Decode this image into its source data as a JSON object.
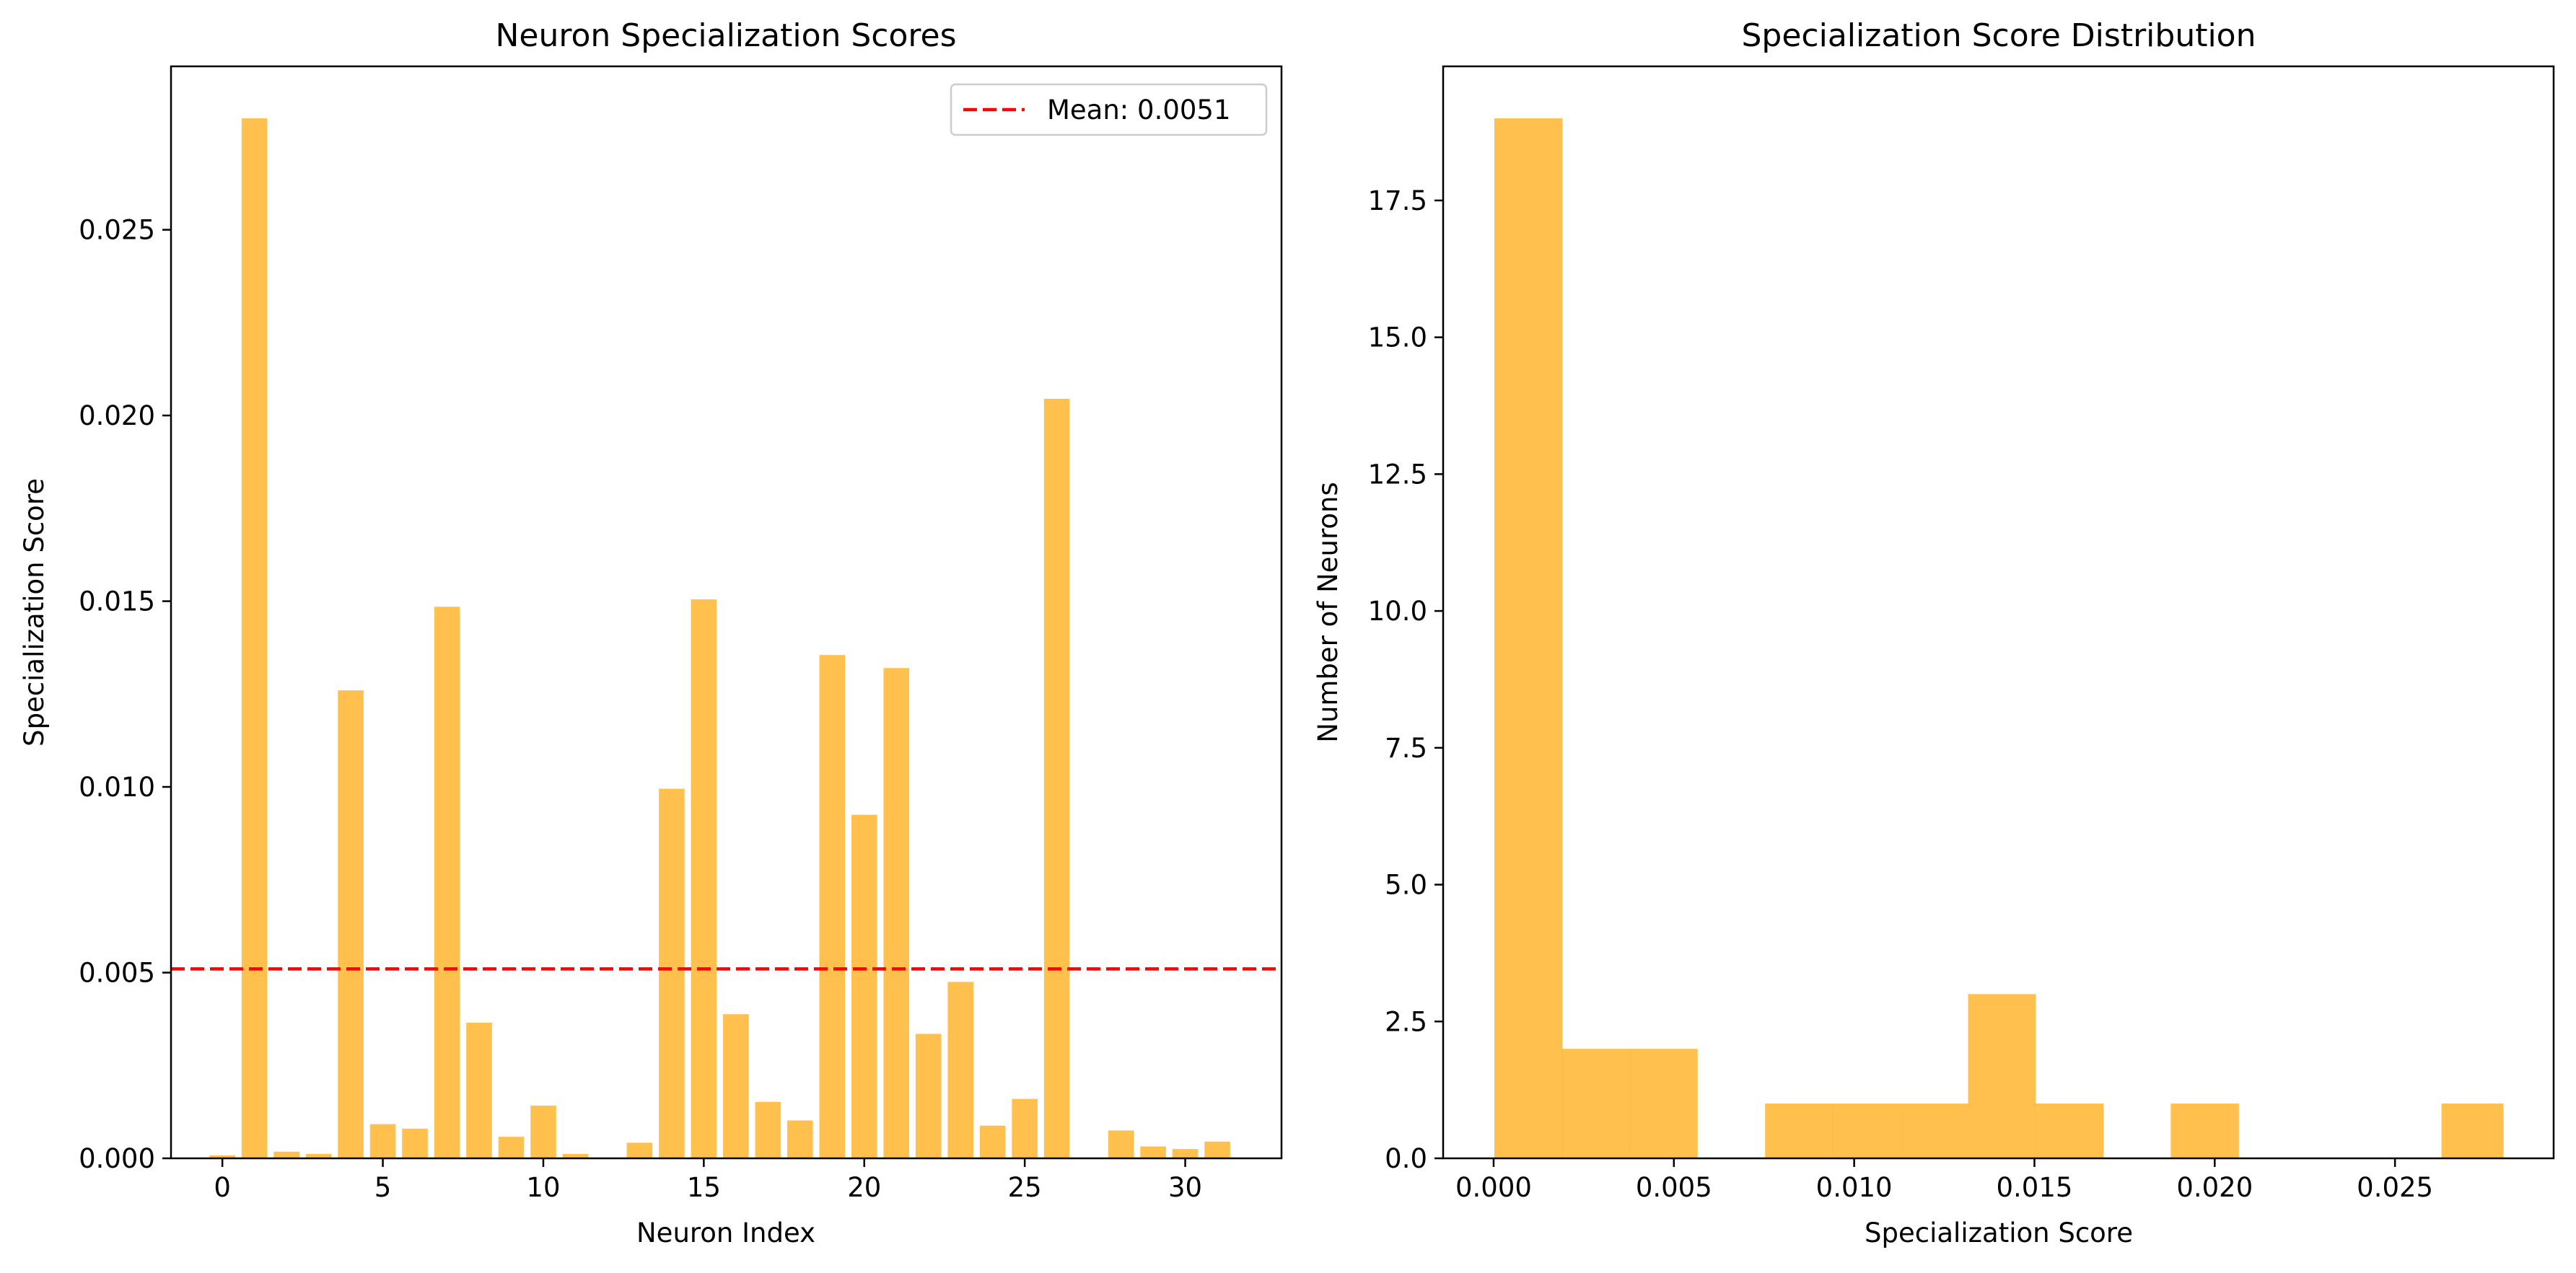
{
  "colors": {
    "bar": "#ffb52e",
    "mean_line": "#ff0000",
    "axis": "#000000",
    "background": "#ffffff"
  },
  "chart_data": [
    {
      "type": "bar",
      "title": "Neuron Specialization Scores",
      "xlabel": "Neuron Index",
      "ylabel": "Specialization Score",
      "xlim": [
        -1.6,
        33.0
      ],
      "ylim": [
        0,
        0.0294
      ],
      "xticks": [
        0,
        5,
        10,
        15,
        20,
        25,
        30
      ],
      "xtick_labels": [
        "0",
        "5",
        "10",
        "15",
        "20",
        "25",
        "30"
      ],
      "yticks": [
        0,
        0.005,
        0.01,
        0.015,
        0.02,
        0.025
      ],
      "ytick_labels": [
        "0.000",
        "0.005",
        "0.010",
        "0.015",
        "0.020",
        "0.025"
      ],
      "x": [
        0,
        1,
        2,
        3,
        4,
        5,
        6,
        7,
        8,
        9,
        10,
        11,
        12,
        13,
        14,
        15,
        16,
        17,
        18,
        19,
        20,
        21,
        22,
        23,
        24,
        25,
        26,
        27,
        28,
        29,
        30,
        31
      ],
      "values": [
        8e-05,
        0.028,
        0.00018,
        0.00012,
        0.0126,
        0.00092,
        0.0008,
        0.01485,
        0.00365,
        0.00058,
        0.00142,
        0.00012,
        2e-05,
        0.00042,
        0.00995,
        0.01505,
        0.00388,
        0.00152,
        0.00102,
        0.01355,
        0.00925,
        0.0132,
        0.00335,
        0.00475,
        0.00088,
        0.0016,
        0.02045,
        2e-05,
        0.00075,
        0.00032,
        0.00025,
        0.00045
      ],
      "grid": false,
      "legend": {
        "placement": "upper right",
        "entries": [
          {
            "label": "Mean: 0.0051",
            "style": "dashed line",
            "value": 0.0051
          }
        ]
      }
    },
    {
      "type": "bar",
      "subtype": "histogram",
      "title": "Specialization Score Distribution",
      "xlabel": "Specialization Score",
      "ylabel": "Number of Neurons",
      "xlim": [
        -0.0014,
        0.0294
      ],
      "ylim": [
        0,
        19.95
      ],
      "xticks": [
        0,
        0.005,
        0.01,
        0.015,
        0.02,
        0.025
      ],
      "xtick_labels": [
        "0.000",
        "0.005",
        "0.010",
        "0.015",
        "0.020",
        "0.025"
      ],
      "yticks": [
        0,
        2.5,
        5,
        7.5,
        10,
        12.5,
        15,
        17.5
      ],
      "ytick_labels": [
        "0.0",
        "2.5",
        "5.0",
        "7.5",
        "10.0",
        "12.5",
        "15.0",
        "17.5"
      ],
      "bin_edges": [
        2e-05,
        0.0019,
        0.00377,
        0.00565,
        0.00753,
        0.0094,
        0.01128,
        0.01316,
        0.01503,
        0.01691,
        0.01878,
        0.02066,
        0.02254,
        0.02441,
        0.02629,
        0.028
      ],
      "counts": [
        19,
        2,
        2,
        0,
        1,
        1,
        1,
        3,
        1,
        0,
        1,
        0,
        0,
        0,
        1
      ],
      "grid": false
    }
  ]
}
